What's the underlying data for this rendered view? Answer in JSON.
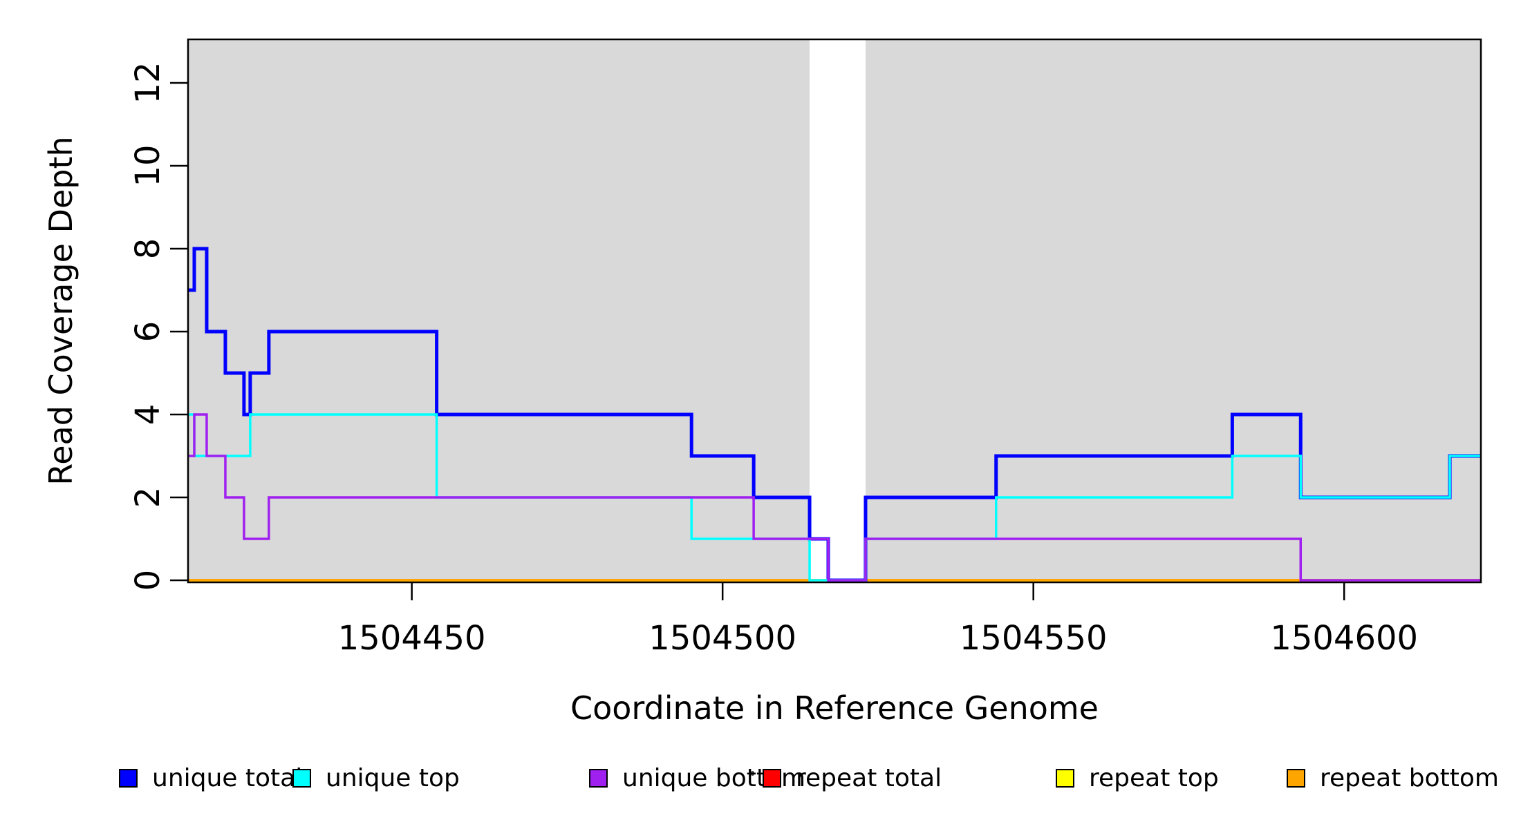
{
  "figure": {
    "xlabel": "Coordinate in Reference Genome",
    "ylabel": "Read Coverage Depth"
  },
  "colors": {
    "background": "#ffffff",
    "panel_shade": "#d9d9d9",
    "axis": "#000000",
    "unique_total": "#0000ff",
    "unique_top": "#00ffff",
    "unique_bottom": "#a020f0",
    "repeat_total": "#ff0000",
    "repeat_top": "#ffff00",
    "repeat_bottom": "#ffa500"
  },
  "chart_data": {
    "type": "line",
    "subtype": "step-after",
    "title": "",
    "xlabel": "Coordinate in Reference Genome",
    "ylabel": "Read Coverage Depth",
    "xlim": [
      1504414,
      1504622
    ],
    "ylim": [
      0,
      13
    ],
    "x_ticks": [
      1504450,
      1504500,
      1504550,
      1504600
    ],
    "y_ticks": [
      0,
      2,
      4,
      6,
      8,
      10,
      12
    ],
    "grid": false,
    "legend_position": "bottom",
    "shaded_regions": [
      {
        "from": 1504414,
        "to": 1504514
      },
      {
        "from": 1504523,
        "to": 1504622
      }
    ],
    "series": [
      {
        "name": "repeat total",
        "color": "#ff0000",
        "width": 4,
        "points": [
          [
            1504414,
            0
          ],
          [
            1504622,
            0
          ]
        ]
      },
      {
        "name": "repeat top",
        "color": "#ffff00",
        "width": 4,
        "points": [
          [
            1504414,
            0
          ],
          [
            1504622,
            0
          ]
        ]
      },
      {
        "name": "repeat bottom",
        "color": "#ffa500",
        "width": 4,
        "points": [
          [
            1504414,
            0
          ],
          [
            1504622,
            0
          ]
        ]
      },
      {
        "name": "unique total",
        "color": "#0000ff",
        "width": 5,
        "points": [
          [
            1504414,
            7
          ],
          [
            1504415,
            8
          ],
          [
            1504417,
            6
          ],
          [
            1504420,
            5
          ],
          [
            1504423,
            4
          ],
          [
            1504424,
            5
          ],
          [
            1504427,
            6
          ],
          [
            1504454,
            4
          ],
          [
            1504495,
            3
          ],
          [
            1504505,
            2
          ],
          [
            1504514,
            1
          ],
          [
            1504517,
            0
          ],
          [
            1504523,
            2
          ],
          [
            1504544,
            3
          ],
          [
            1504582,
            4
          ],
          [
            1504593,
            2
          ],
          [
            1504617,
            3
          ],
          [
            1504622,
            3
          ]
        ]
      },
      {
        "name": "unique top",
        "color": "#00ffff",
        "width": 3.5,
        "points": [
          [
            1504414,
            4
          ],
          [
            1504415,
            3
          ],
          [
            1504424,
            4
          ],
          [
            1504454,
            2
          ],
          [
            1504495,
            1
          ],
          [
            1504514,
            0
          ],
          [
            1504523,
            1
          ],
          [
            1504544,
            2
          ],
          [
            1504582,
            3
          ],
          [
            1504593,
            2
          ],
          [
            1504617,
            3
          ],
          [
            1504622,
            3
          ]
        ]
      },
      {
        "name": "unique bottom",
        "color": "#a020f0",
        "width": 3.5,
        "points": [
          [
            1504414,
            3
          ],
          [
            1504415,
            4
          ],
          [
            1504417,
            3
          ],
          [
            1504420,
            2
          ],
          [
            1504423,
            1
          ],
          [
            1504427,
            2
          ],
          [
            1504505,
            1
          ],
          [
            1504517,
            0
          ],
          [
            1504523,
            1
          ],
          [
            1504593,
            0
          ],
          [
            1504622,
            0
          ]
        ]
      }
    ]
  },
  "legend": {
    "items": [
      {
        "label": "unique total",
        "color": "#0000ff"
      },
      {
        "label": "unique top",
        "color": "#00ffff"
      },
      {
        "label": "unique bottom",
        "color": "#a020f0"
      },
      {
        "label": "repeat total",
        "color": "#ff0000"
      },
      {
        "label": "repeat top",
        "color": "#ffff00"
      },
      {
        "label": "repeat bottom",
        "color": "#ffa500"
      }
    ]
  }
}
